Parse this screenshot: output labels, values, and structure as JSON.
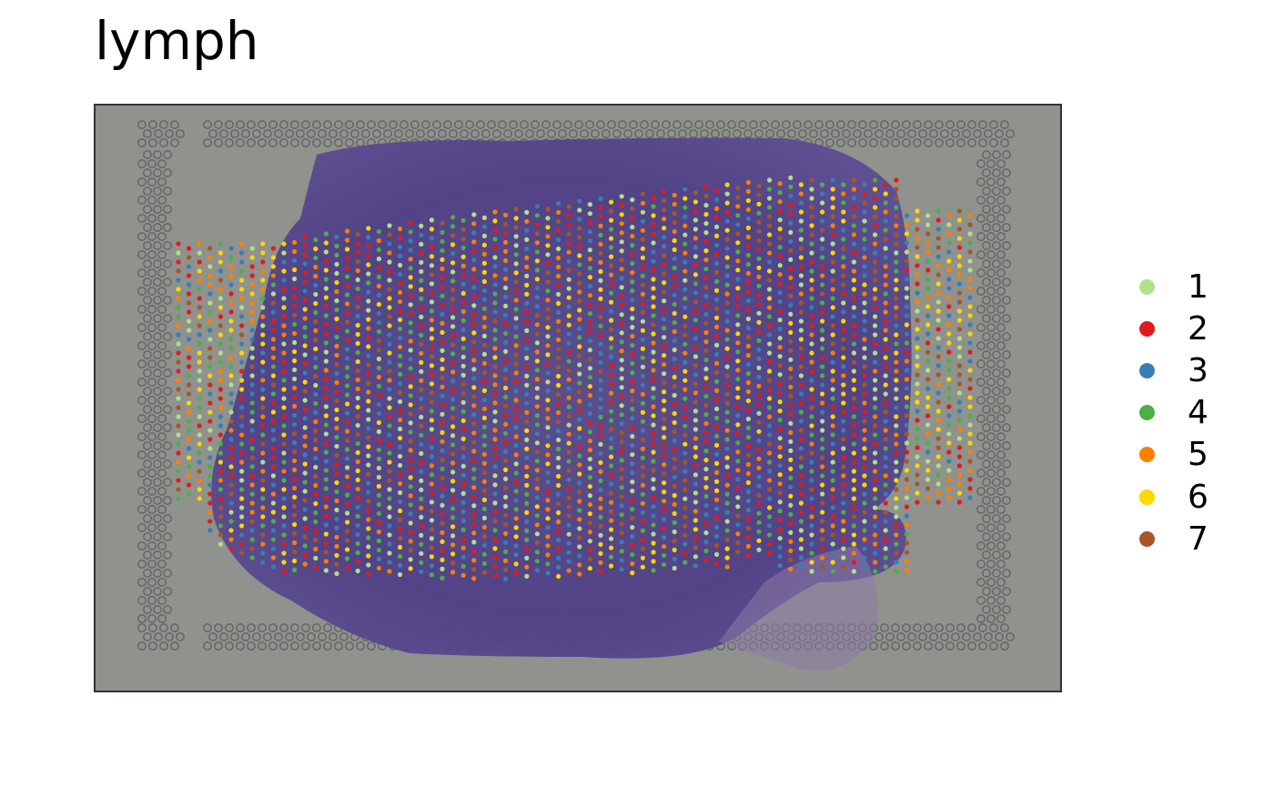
{
  "chart_data": {
    "type": "scatter",
    "title": "lymph",
    "xlabel": "",
    "ylabel": "",
    "grid": false,
    "legend_position": "right",
    "background": "H&E stained tissue section with fiducial spot grid",
    "categories": [
      "1",
      "2",
      "3",
      "4",
      "5",
      "6",
      "7"
    ],
    "colors": [
      "#b2df8a",
      "#e31a1c",
      "#377eb8",
      "#4daf4a",
      "#ff7f00",
      "#ffd700",
      "#a65628"
    ],
    "point_description": "Visium spot grid covering the tissue region, each spot colored by cluster label"
  }
}
